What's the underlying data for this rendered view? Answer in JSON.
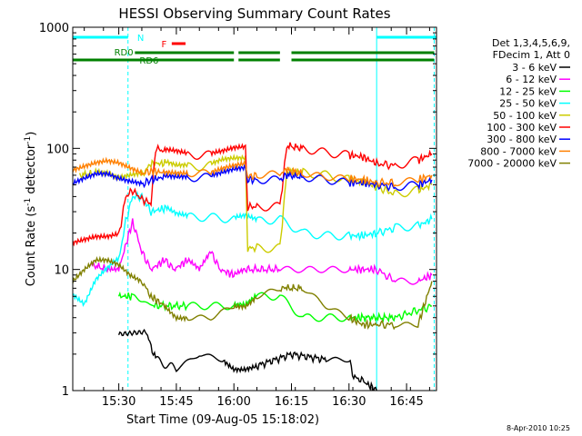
{
  "chart_data": {
    "type": "line",
    "title": "HESSI Observing Summary Count Rates",
    "xlabel": "Start Time (09-Aug-05 15:18:02)",
    "ylabel": "Count Rate (s",
    "ylabel_sup1": "-1",
    "ylabel_mid": " detector",
    "ylabel_sup2": "-1",
    "ylabel_end": ")",
    "y_scale": "log",
    "ylim": [
      1,
      1000
    ],
    "xlim_minutes": [
      15.3,
      16.88
    ],
    "x_ticks": [
      {
        "h": 15.5,
        "label": "15:30"
      },
      {
        "h": 15.75,
        "label": "15:45"
      },
      {
        "h": 16.0,
        "label": "16:00"
      },
      {
        "h": 16.25,
        "label": "16:15"
      },
      {
        "h": 16.5,
        "label": "16:30"
      },
      {
        "h": 16.75,
        "label": "16:45"
      }
    ],
    "y_ticks": [
      {
        "v": 1,
        "label": "1"
      },
      {
        "v": 10,
        "label": "10"
      },
      {
        "v": 100,
        "label": "100"
      },
      {
        "v": 1000,
        "label": "1000"
      }
    ],
    "timestamp": "8-Apr-2010 10:25",
    "legend_header": [
      "Det 1,3,4,5,6,9,",
      "FDecim 1, Att 0"
    ],
    "series": [
      {
        "name": "3 - 6 keV",
        "color": "#000000",
        "points": [
          [
            15.33,
            null
          ],
          [
            15.5,
            3
          ],
          [
            15.62,
            3
          ],
          [
            15.66,
            1.8
          ],
          [
            15.75,
            1.5
          ],
          [
            15.85,
            2
          ],
          [
            15.95,
            1.8
          ],
          [
            16.0,
            1.5
          ],
          [
            16.05,
            1.5
          ],
          [
            16.1,
            1.6
          ],
          [
            16.25,
            2
          ],
          [
            16.4,
            1.8
          ],
          [
            16.5,
            1.8
          ],
          [
            16.52,
            1.3
          ],
          [
            16.56,
            1.2
          ],
          [
            16.62,
            1
          ]
        ]
      },
      {
        "name": "6 - 12 keV",
        "color": "#ff00ff",
        "points": [
          [
            15.38,
            11
          ],
          [
            15.45,
            10
          ],
          [
            15.5,
            10
          ],
          [
            15.56,
            25
          ],
          [
            15.6,
            14
          ],
          [
            15.64,
            10
          ],
          [
            15.7,
            12
          ],
          [
            15.74,
            10
          ],
          [
            15.8,
            12
          ],
          [
            15.85,
            10
          ],
          [
            15.9,
            14
          ],
          [
            15.94,
            10
          ],
          [
            16.0,
            9
          ],
          [
            16.05,
            10
          ],
          [
            16.2,
            10
          ],
          [
            16.3,
            10
          ],
          [
            16.4,
            10
          ],
          [
            16.5,
            10
          ],
          [
            16.56,
            10
          ],
          [
            16.62,
            10
          ],
          [
            16.7,
            8
          ],
          [
            16.8,
            8
          ],
          [
            16.86,
            9
          ]
        ]
      },
      {
        "name": "12 - 25 keV",
        "color": "#00ff00",
        "points": [
          [
            15.5,
            6
          ],
          [
            15.56,
            6
          ],
          [
            15.65,
            5
          ],
          [
            15.8,
            5
          ],
          [
            15.9,
            5
          ],
          [
            16.0,
            5
          ],
          [
            16.05,
            5
          ],
          [
            16.1,
            6
          ],
          [
            16.2,
            6
          ],
          [
            16.3,
            4
          ],
          [
            16.4,
            4
          ],
          [
            16.5,
            4
          ],
          [
            16.56,
            4
          ],
          [
            16.7,
            4
          ],
          [
            16.86,
            5
          ]
        ]
      },
      {
        "name": "25 - 50 keV",
        "color": "#00ffff",
        "points": [
          [
            15.3,
            6
          ],
          [
            15.35,
            5
          ],
          [
            15.4,
            8
          ],
          [
            15.45,
            10
          ],
          [
            15.5,
            12
          ],
          [
            15.53,
            25
          ],
          [
            15.56,
            40
          ],
          [
            15.6,
            40
          ],
          [
            15.64,
            30
          ],
          [
            15.7,
            32
          ],
          [
            15.75,
            28
          ],
          [
            15.8,
            27
          ],
          [
            15.9,
            27
          ],
          [
            16.0,
            26
          ],
          [
            16.05,
            27
          ],
          [
            16.1,
            25
          ],
          [
            16.2,
            26
          ],
          [
            16.3,
            20
          ],
          [
            16.4,
            19
          ],
          [
            16.5,
            19
          ],
          [
            16.56,
            19
          ],
          [
            16.62,
            20
          ],
          [
            16.7,
            22
          ],
          [
            16.8,
            23
          ],
          [
            16.86,
            26
          ]
        ]
      },
      {
        "name": "50 - 100 keV",
        "color": "#cccc00",
        "points": [
          [
            15.33,
            60
          ],
          [
            15.4,
            62
          ],
          [
            15.45,
            60
          ],
          [
            15.5,
            55
          ],
          [
            15.55,
            58
          ],
          [
            15.6,
            60
          ],
          [
            15.64,
            75
          ],
          [
            15.7,
            75
          ],
          [
            15.75,
            70
          ],
          [
            15.8,
            70
          ],
          [
            15.9,
            72
          ],
          [
            15.95,
            78
          ],
          [
            16.0,
            80
          ],
          [
            16.05,
            80
          ],
          [
            16.06,
            15
          ],
          [
            16.1,
            15
          ],
          [
            16.2,
            15
          ],
          [
            16.23,
            65
          ],
          [
            16.3,
            63
          ],
          [
            16.4,
            60
          ],
          [
            16.5,
            55
          ],
          [
            16.56,
            53
          ],
          [
            16.62,
            48
          ],
          [
            16.7,
            42
          ],
          [
            16.8,
            45
          ],
          [
            16.86,
            50
          ]
        ]
      },
      {
        "name": "100 - 300 keV",
        "color": "#ff0000",
        "points": [
          [
            15.3,
            16
          ],
          [
            15.35,
            17
          ],
          [
            15.4,
            18
          ],
          [
            15.45,
            18
          ],
          [
            15.5,
            19
          ],
          [
            15.53,
            40
          ],
          [
            15.56,
            45
          ],
          [
            15.6,
            38
          ],
          [
            15.64,
            35
          ],
          [
            15.66,
            100
          ],
          [
            15.7,
            95
          ],
          [
            15.75,
            92
          ],
          [
            15.8,
            88
          ],
          [
            15.9,
            88
          ],
          [
            15.95,
            92
          ],
          [
            16.0,
            98
          ],
          [
            16.05,
            100
          ],
          [
            16.06,
            33
          ],
          [
            16.1,
            33
          ],
          [
            16.2,
            33
          ],
          [
            16.23,
            105
          ],
          [
            16.3,
            100
          ],
          [
            16.4,
            92
          ],
          [
            16.5,
            88
          ],
          [
            16.56,
            85
          ],
          [
            16.62,
            75
          ],
          [
            16.7,
            72
          ],
          [
            16.8,
            80
          ],
          [
            16.86,
            90
          ]
        ]
      },
      {
        "name": "300 - 800 keV",
        "color": "#0000ff",
        "points": [
          [
            15.3,
            50
          ],
          [
            15.35,
            55
          ],
          [
            15.4,
            60
          ],
          [
            15.45,
            60
          ],
          [
            15.5,
            55
          ],
          [
            15.55,
            52
          ],
          [
            15.6,
            50
          ],
          [
            15.64,
            55
          ],
          [
            15.7,
            58
          ],
          [
            15.75,
            57
          ],
          [
            15.8,
            57
          ],
          [
            15.9,
            58
          ],
          [
            15.95,
            62
          ],
          [
            16.0,
            66
          ],
          [
            16.05,
            68
          ],
          [
            16.06,
            55
          ],
          [
            16.1,
            55
          ],
          [
            16.2,
            55
          ],
          [
            16.23,
            60
          ],
          [
            16.3,
            58
          ],
          [
            16.4,
            55
          ],
          [
            16.5,
            52
          ],
          [
            16.56,
            52
          ],
          [
            16.62,
            50
          ],
          [
            16.7,
            48
          ],
          [
            16.8,
            50
          ],
          [
            16.86,
            55
          ]
        ]
      },
      {
        "name": "800 - 7000 keV",
        "color": "#ff8000",
        "points": [
          [
            15.3,
            65
          ],
          [
            15.35,
            70
          ],
          [
            15.4,
            75
          ],
          [
            15.45,
            78
          ],
          [
            15.5,
            75
          ],
          [
            15.55,
            68
          ],
          [
            15.6,
            62
          ],
          [
            15.64,
            65
          ],
          [
            15.7,
            63
          ],
          [
            15.75,
            62
          ],
          [
            15.8,
            62
          ],
          [
            15.9,
            63
          ],
          [
            15.95,
            68
          ],
          [
            16.0,
            72
          ],
          [
            16.05,
            75
          ],
          [
            16.06,
            58
          ],
          [
            16.1,
            60
          ],
          [
            16.2,
            62
          ],
          [
            16.23,
            66
          ],
          [
            16.3,
            62
          ],
          [
            16.4,
            58
          ],
          [
            16.5,
            56
          ],
          [
            16.56,
            55
          ],
          [
            16.62,
            52
          ],
          [
            16.7,
            52
          ],
          [
            16.8,
            55
          ],
          [
            16.86,
            60
          ]
        ]
      },
      {
        "name": "7000 - 20000 keV",
        "color": "#808000",
        "points": [
          [
            15.3,
            8
          ],
          [
            15.35,
            10
          ],
          [
            15.4,
            12
          ],
          [
            15.45,
            12
          ],
          [
            15.5,
            11
          ],
          [
            15.55,
            9
          ],
          [
            15.6,
            8
          ],
          [
            15.64,
            6
          ],
          [
            15.7,
            5
          ],
          [
            15.75,
            4
          ],
          [
            15.8,
            4
          ],
          [
            15.9,
            4
          ],
          [
            16.0,
            5
          ],
          [
            16.05,
            5
          ],
          [
            16.1,
            6
          ],
          [
            16.2,
            7
          ],
          [
            16.23,
            7
          ],
          [
            16.3,
            7
          ],
          [
            16.4,
            5
          ],
          [
            16.5,
            4
          ],
          [
            16.56,
            3.5
          ],
          [
            16.62,
            3.5
          ],
          [
            16.7,
            3.5
          ],
          [
            16.8,
            3.5
          ],
          [
            16.86,
            8
          ]
        ]
      }
    ],
    "annotations": {
      "n_label": "N",
      "f_label": "F",
      "rd0_label": "RD0",
      "rd6_label": "RD6",
      "flag_colors": {
        "n": "#00ffff",
        "f": "#ff0000",
        "rd": "#008000"
      }
    }
  }
}
